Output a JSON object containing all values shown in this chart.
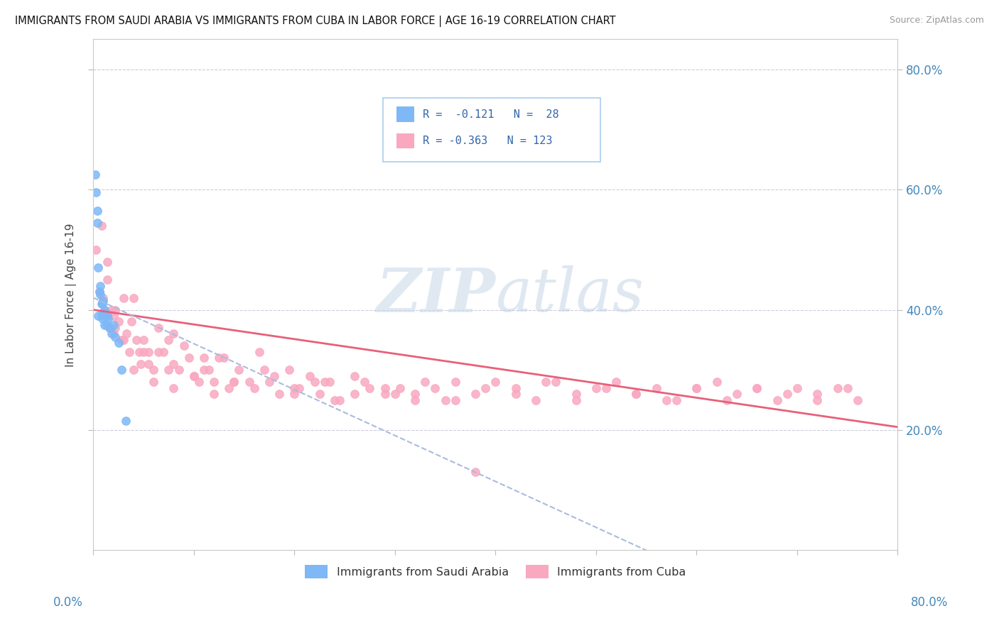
{
  "title": "IMMIGRANTS FROM SAUDI ARABIA VS IMMIGRANTS FROM CUBA IN LABOR FORCE | AGE 16-19 CORRELATION CHART",
  "source": "Source: ZipAtlas.com",
  "ylabel": "In Labor Force | Age 16-19",
  "saudi_color": "#7EB8F7",
  "cuba_color": "#F9A8C0",
  "saudi_trend_color": "#AABBDD",
  "cuba_trend_color": "#E8607A",
  "watermark_color": "#C8D8E8",
  "saudi_r": -0.121,
  "saudi_n": 28,
  "cuba_r": -0.363,
  "cuba_n": 123,
  "xmin": 0.0,
  "xmax": 0.8,
  "ymin": 0.0,
  "ymax": 0.85,
  "saudi_x": [
    0.002,
    0.003,
    0.004,
    0.004,
    0.005,
    0.005,
    0.006,
    0.007,
    0.007,
    0.008,
    0.008,
    0.009,
    0.009,
    0.01,
    0.01,
    0.011,
    0.011,
    0.012,
    0.013,
    0.014,
    0.015,
    0.016,
    0.018,
    0.02,
    0.022,
    0.025,
    0.028,
    0.032
  ],
  "saudi_y": [
    0.625,
    0.595,
    0.565,
    0.545,
    0.47,
    0.39,
    0.43,
    0.44,
    0.425,
    0.41,
    0.39,
    0.41,
    0.385,
    0.415,
    0.395,
    0.4,
    0.375,
    0.395,
    0.375,
    0.39,
    0.385,
    0.37,
    0.36,
    0.375,
    0.355,
    0.345,
    0.3,
    0.215
  ],
  "cuba_x": [
    0.003,
    0.006,
    0.008,
    0.01,
    0.012,
    0.014,
    0.016,
    0.018,
    0.02,
    0.022,
    0.025,
    0.028,
    0.03,
    0.033,
    0.036,
    0.04,
    0.043,
    0.047,
    0.05,
    0.055,
    0.06,
    0.065,
    0.07,
    0.075,
    0.08,
    0.09,
    0.1,
    0.11,
    0.12,
    0.13,
    0.014,
    0.022,
    0.03,
    0.038,
    0.046,
    0.055,
    0.065,
    0.075,
    0.085,
    0.095,
    0.105,
    0.115,
    0.125,
    0.135,
    0.145,
    0.155,
    0.165,
    0.175,
    0.185,
    0.195,
    0.205,
    0.215,
    0.225,
    0.235,
    0.245,
    0.26,
    0.275,
    0.29,
    0.305,
    0.32,
    0.34,
    0.36,
    0.38,
    0.4,
    0.42,
    0.44,
    0.46,
    0.48,
    0.5,
    0.52,
    0.54,
    0.56,
    0.58,
    0.6,
    0.62,
    0.64,
    0.66,
    0.68,
    0.7,
    0.72,
    0.74,
    0.76,
    0.04,
    0.06,
    0.08,
    0.1,
    0.12,
    0.14,
    0.16,
    0.18,
    0.2,
    0.22,
    0.24,
    0.27,
    0.3,
    0.33,
    0.36,
    0.39,
    0.42,
    0.45,
    0.48,
    0.51,
    0.54,
    0.57,
    0.6,
    0.63,
    0.66,
    0.69,
    0.72,
    0.75,
    0.02,
    0.05,
    0.08,
    0.11,
    0.14,
    0.17,
    0.2,
    0.23,
    0.26,
    0.29,
    0.32,
    0.35,
    0.38
  ],
  "cuba_y": [
    0.5,
    0.43,
    0.54,
    0.42,
    0.4,
    0.48,
    0.37,
    0.4,
    0.36,
    0.4,
    0.38,
    0.35,
    0.42,
    0.36,
    0.33,
    0.42,
    0.35,
    0.31,
    0.35,
    0.33,
    0.3,
    0.37,
    0.33,
    0.3,
    0.36,
    0.34,
    0.29,
    0.32,
    0.28,
    0.32,
    0.45,
    0.37,
    0.35,
    0.38,
    0.33,
    0.31,
    0.33,
    0.35,
    0.3,
    0.32,
    0.28,
    0.3,
    0.32,
    0.27,
    0.3,
    0.28,
    0.33,
    0.28,
    0.26,
    0.3,
    0.27,
    0.29,
    0.26,
    0.28,
    0.25,
    0.29,
    0.27,
    0.26,
    0.27,
    0.25,
    0.27,
    0.28,
    0.26,
    0.28,
    0.27,
    0.25,
    0.28,
    0.26,
    0.27,
    0.28,
    0.26,
    0.27,
    0.25,
    0.27,
    0.28,
    0.26,
    0.27,
    0.25,
    0.27,
    0.26,
    0.27,
    0.25,
    0.3,
    0.28,
    0.27,
    0.29,
    0.26,
    0.28,
    0.27,
    0.29,
    0.26,
    0.28,
    0.25,
    0.28,
    0.26,
    0.28,
    0.25,
    0.27,
    0.26,
    0.28,
    0.25,
    0.27,
    0.26,
    0.25,
    0.27,
    0.25,
    0.27,
    0.26,
    0.25,
    0.27,
    0.39,
    0.33,
    0.31,
    0.3,
    0.28,
    0.3,
    0.27,
    0.28,
    0.26,
    0.27,
    0.26,
    0.25,
    0.13
  ]
}
